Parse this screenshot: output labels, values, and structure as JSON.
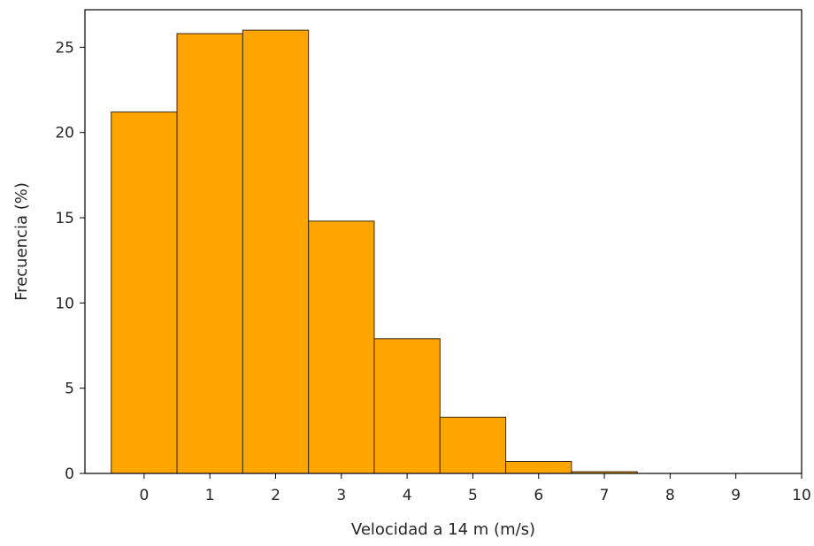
{
  "chart_data": {
    "type": "bar",
    "title": "",
    "xlabel": "Velocidad a 14 m (m/s)",
    "ylabel": "Frecuencia (%)",
    "categories": [
      "0",
      "1",
      "2",
      "3",
      "4",
      "5",
      "6",
      "7",
      "8",
      "9"
    ],
    "values": [
      21.2,
      25.8,
      26.0,
      14.8,
      7.9,
      3.3,
      0.7,
      0.1,
      0.0,
      0.0
    ],
    "xlim": [
      -0.9,
      10
    ],
    "ylim": [
      0,
      27.2
    ],
    "xticks": [
      "0",
      "1",
      "2",
      "3",
      "4",
      "5",
      "6",
      "7",
      "8",
      "9",
      "10"
    ],
    "yticks": [
      "0",
      "5",
      "10",
      "15",
      "20",
      "25"
    ],
    "bar_color": "#FFA500",
    "bar_edge_color": "#3a2a10",
    "grid": false
  }
}
